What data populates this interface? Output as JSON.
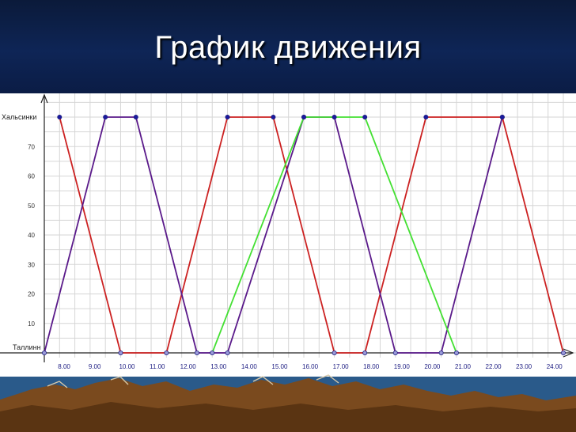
{
  "slide": {
    "title": "График движения"
  },
  "colors": {
    "background": "#ffffff",
    "grid": "#d6d6d6",
    "header": "#0e2556",
    "red_series": "#cc2222",
    "purple_series": "#5a1a8a",
    "green_series": "#44e033",
    "point_fill": "#1a1aa0",
    "mountain": "#7a4a1e"
  },
  "chart_data": {
    "type": "line",
    "title": "",
    "xlabel": "",
    "ylabel": "",
    "y_top_label": "Хальсинки",
    "y_bottom_label": "Таллинн",
    "xlim": [
      7.5,
      24.5
    ],
    "ylim": [
      0,
      80
    ],
    "x_ticks": [
      {
        "x": 8,
        "label": "8.00"
      },
      {
        "x": 9,
        "label": "9.00"
      },
      {
        "x": 10,
        "label": "10.00"
      },
      {
        "x": 11,
        "label": "11.00"
      },
      {
        "x": 12,
        "label": "12.00"
      },
      {
        "x": 13,
        "label": "13.00"
      },
      {
        "x": 14,
        "label": "14.00"
      },
      {
        "x": 15,
        "label": "15.00"
      },
      {
        "x": 16,
        "label": "16.00"
      },
      {
        "x": 17,
        "label": "17.00"
      },
      {
        "x": 18,
        "label": "18.00"
      },
      {
        "x": 19,
        "label": "19.00"
      },
      {
        "x": 20,
        "label": "20.00"
      },
      {
        "x": 21,
        "label": "21.00"
      },
      {
        "x": 22,
        "label": "22.00"
      },
      {
        "x": 23,
        "label": "23.00"
      },
      {
        "x": 24,
        "label": "24.00"
      }
    ],
    "y_ticks": [
      10,
      20,
      30,
      40,
      50,
      60,
      70
    ],
    "grid": true,
    "series": [
      {
        "color": "#cc2222",
        "points": [
          [
            8,
            80
          ],
          [
            10,
            0
          ],
          [
            11.5,
            0
          ],
          [
            13.5,
            80
          ],
          [
            15,
            80
          ],
          [
            17,
            0
          ],
          [
            18,
            0
          ],
          [
            20,
            80
          ],
          [
            22.5,
            80
          ],
          [
            24.5,
            0
          ]
        ]
      },
      {
        "color": "#5a1a8a",
        "points": [
          [
            7.5,
            0
          ],
          [
            9.5,
            80
          ],
          [
            10.5,
            80
          ],
          [
            12.5,
            0
          ],
          [
            13.5,
            0
          ],
          [
            16,
            80
          ],
          [
            17,
            80
          ],
          [
            19,
            0
          ],
          [
            20.5,
            0
          ],
          [
            22.5,
            80
          ]
        ]
      },
      {
        "color": "#44e033",
        "points": [
          [
            13,
            0
          ],
          [
            16,
            80
          ],
          [
            18,
            80
          ],
          [
            21,
            0
          ]
        ]
      }
    ]
  }
}
